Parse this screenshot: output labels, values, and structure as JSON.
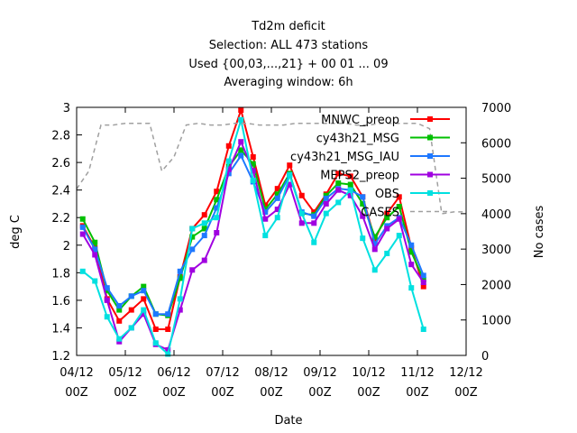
{
  "chart_data": {
    "type": "line",
    "title_lines": [
      "Td2m deficit",
      "Selection: ALL    473 stations",
      "Used {00,03,...,21} + 00 01 ... 09",
      "Averaging window:  6h"
    ],
    "xlabel": "Date",
    "ylabel": "deg C",
    "y2label": "No cases",
    "x_ticks": [
      {
        "x": 0,
        "line1": "04/12",
        "line2": "00Z"
      },
      {
        "x": 1,
        "line1": "05/12",
        "line2": "00Z"
      },
      {
        "x": 2,
        "line1": "06/12",
        "line2": "00Z"
      },
      {
        "x": 3,
        "line1": "07/12",
        "line2": "00Z"
      },
      {
        "x": 4,
        "line1": "08/12",
        "line2": "00Z"
      },
      {
        "x": 5,
        "line1": "09/12",
        "line2": "00Z"
      },
      {
        "x": 6,
        "line1": "10/12",
        "line2": "00Z"
      },
      {
        "x": 7,
        "line1": "11/12",
        "line2": "00Z"
      },
      {
        "x": 8,
        "line1": "12/12",
        "line2": "00Z"
      }
    ],
    "xlim": [
      0,
      8
    ],
    "ylim": [
      1.2,
      3.0
    ],
    "y_ticks": [
      "1.2",
      "1.4",
      "1.6",
      "1.8",
      "2",
      "2.2",
      "2.4",
      "2.6",
      "2.8",
      "3"
    ],
    "y2lim": [
      0,
      7000
    ],
    "y2_ticks": [
      "0",
      "1000",
      "2000",
      "3000",
      "4000",
      "5000",
      "6000",
      "7000"
    ],
    "x": [
      0.125,
      0.375,
      0.625,
      0.875,
      1.125,
      1.375,
      1.625,
      1.875,
      2.125,
      2.375,
      2.625,
      2.875,
      3.125,
      3.375,
      3.625,
      3.875,
      4.125,
      4.375,
      4.625,
      4.875,
      5.125,
      5.375,
      5.625,
      5.875,
      6.125,
      6.375,
      6.625,
      6.875,
      7.125,
      7.375
    ],
    "series": [
      {
        "name": "MNWC_preop",
        "color": "#ff0000",
        "axis": "left",
        "values": [
          2.14,
          1.98,
          1.61,
          1.45,
          1.53,
          1.61,
          1.39,
          1.39,
          1.77,
          2.12,
          2.22,
          2.39,
          2.72,
          2.98,
          2.64,
          2.29,
          2.41,
          2.58,
          2.36,
          2.24,
          2.37,
          2.52,
          2.5,
          2.35,
          2.04,
          2.23,
          2.35,
          1.98,
          1.7,
          null
        ]
      },
      {
        "name": "cy43h21_MSG",
        "color": "#00c000",
        "axis": "left",
        "values": [
          2.19,
          2.02,
          1.67,
          1.53,
          1.63,
          1.7,
          1.5,
          1.49,
          1.76,
          2.06,
          2.12,
          2.33,
          2.57,
          2.69,
          2.59,
          2.26,
          2.37,
          2.52,
          2.23,
          2.22,
          2.36,
          2.45,
          2.44,
          2.3,
          2.06,
          2.2,
          2.28,
          1.95,
          1.75,
          null
        ]
      },
      {
        "name": "cy43h21_MSG_IAU",
        "color": "#1e78ff",
        "axis": "left",
        "values": [
          2.13,
          1.97,
          1.69,
          1.56,
          1.63,
          1.67,
          1.5,
          1.5,
          1.81,
          1.97,
          2.07,
          2.27,
          2.52,
          2.65,
          2.46,
          2.24,
          2.34,
          2.51,
          2.24,
          2.21,
          2.34,
          2.41,
          2.4,
          2.35,
          2.01,
          2.14,
          2.2,
          2.0,
          1.78,
          null
        ]
      },
      {
        "name": "MEPS2_preop",
        "color": "#a000e0",
        "axis": "left",
        "values": [
          2.08,
          1.93,
          1.6,
          1.3,
          1.4,
          1.5,
          1.28,
          1.24,
          1.53,
          1.82,
          1.89,
          2.09,
          2.55,
          2.75,
          2.54,
          2.19,
          2.26,
          2.44,
          2.16,
          2.16,
          2.3,
          2.4,
          2.36,
          2.21,
          1.97,
          2.12,
          2.19,
          1.86,
          1.73,
          null
        ]
      },
      {
        "name": "OBS",
        "color": "#00e0e0",
        "axis": "left",
        "values": [
          1.81,
          1.74,
          1.48,
          1.32,
          1.4,
          1.53,
          1.29,
          1.21,
          1.61,
          2.12,
          2.16,
          2.2,
          2.61,
          2.91,
          2.47,
          2.07,
          2.2,
          2.51,
          2.23,
          2.02,
          2.23,
          2.31,
          2.4,
          2.05,
          1.82,
          1.94,
          2.07,
          1.69,
          1.39,
          null
        ]
      },
      {
        "name": "CASES",
        "color": "#a0a0a0",
        "axis": "right",
        "dashed": true,
        "x": [
          0.0,
          0.25,
          0.5,
          0.75,
          1.0,
          1.25,
          1.5,
          1.75,
          2.0,
          2.25,
          2.5,
          2.75,
          3.0,
          3.25,
          3.5,
          3.75,
          4.0,
          4.25,
          4.5,
          4.75,
          5.0,
          5.25,
          5.5,
          5.75,
          6.0,
          6.25,
          6.5,
          6.75,
          7.0,
          7.25,
          7.5,
          7.75,
          8.0
        ],
        "values": [
          4700,
          5200,
          6500,
          6500,
          6550,
          6550,
          6550,
          5200,
          5600,
          6500,
          6550,
          6500,
          6500,
          6550,
          6550,
          6500,
          6500,
          6500,
          6550,
          6550,
          6550,
          6550,
          6550,
          6500,
          6500,
          6550,
          6550,
          6550,
          6550,
          6400,
          4000,
          4050,
          4050
        ]
      }
    ],
    "legend_position": "top-right",
    "grid": false
  }
}
